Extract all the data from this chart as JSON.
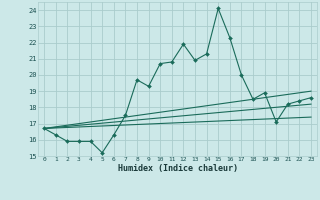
{
  "xlabel": "Humidex (Indice chaleur)",
  "bg_color": "#cce8e8",
  "grid_color": "#aacccc",
  "line_color": "#1a6b5a",
  "xlim": [
    -0.5,
    23.5
  ],
  "ylim": [
    15,
    24.5
  ],
  "yticks": [
    15,
    16,
    17,
    18,
    19,
    20,
    21,
    22,
    23,
    24
  ],
  "xticks": [
    0,
    1,
    2,
    3,
    4,
    5,
    6,
    7,
    8,
    9,
    10,
    11,
    12,
    13,
    14,
    15,
    16,
    17,
    18,
    19,
    20,
    21,
    22,
    23
  ],
  "series": [
    {
      "x": [
        0,
        1,
        2,
        3,
        4,
        5,
        6,
        7,
        8,
        9,
        10,
        11,
        12,
        13,
        14,
        15,
        16,
        17,
        18,
        19,
        20,
        21,
        22,
        23
      ],
      "y": [
        16.7,
        16.3,
        15.9,
        15.9,
        15.9,
        15.2,
        16.3,
        17.5,
        19.7,
        19.3,
        20.7,
        20.8,
        21.9,
        20.9,
        21.3,
        24.1,
        22.3,
        20.0,
        18.5,
        18.9,
        17.1,
        18.2,
        18.4,
        18.6
      ]
    },
    {
      "x": [
        0,
        23
      ],
      "y": [
        16.7,
        19.0
      ]
    },
    {
      "x": [
        0,
        23
      ],
      "y": [
        16.7,
        18.2
      ]
    },
    {
      "x": [
        0,
        23
      ],
      "y": [
        16.7,
        17.4
      ]
    }
  ]
}
